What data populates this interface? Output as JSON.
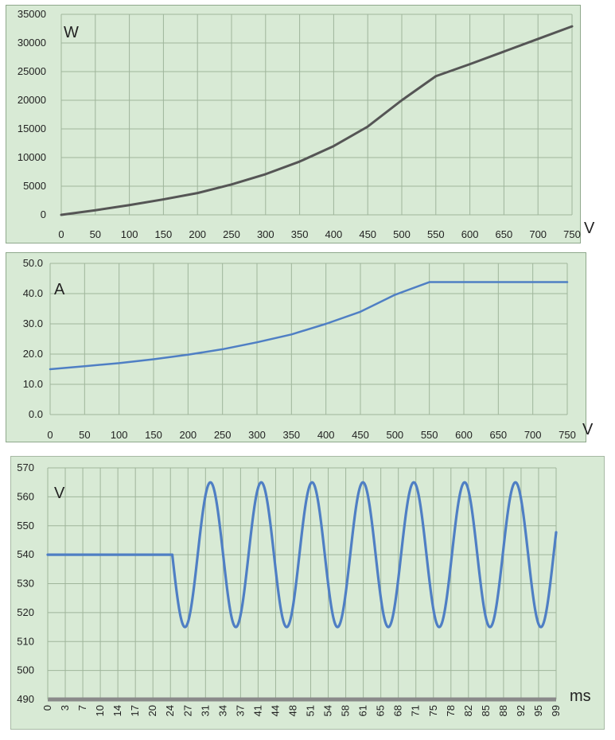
{
  "chart_data": [
    {
      "type": "line",
      "ylabel": "W",
      "xlabel": "V",
      "xlim": [
        0,
        750
      ],
      "ylim": [
        0,
        35000
      ],
      "x_ticks": [
        "0",
        "50",
        "100",
        "150",
        "200",
        "250",
        "300",
        "350",
        "400",
        "450",
        "500",
        "550",
        "600",
        "650",
        "700",
        "750"
      ],
      "y_ticks": [
        "0",
        "5000",
        "10000",
        "15000",
        "20000",
        "25000",
        "30000",
        "35000"
      ],
      "grid": true,
      "series": [
        {
          "color": "#555555",
          "x": [
            0,
            50,
            100,
            150,
            200,
            250,
            300,
            350,
            400,
            450,
            500,
            550,
            600,
            650,
            700,
            750
          ],
          "y": [
            0,
            800,
            1700,
            2700,
            3800,
            5300,
            7100,
            9300,
            12000,
            15400,
            20000,
            24200,
            26300,
            28500,
            30700,
            32900
          ]
        }
      ]
    },
    {
      "type": "line",
      "ylabel": "A",
      "xlabel": "V",
      "xlim": [
        0,
        750
      ],
      "ylim": [
        0,
        50
      ],
      "x_ticks": [
        "0",
        "50",
        "100",
        "150",
        "200",
        "250",
        "300",
        "350",
        "400",
        "450",
        "500",
        "550",
        "600",
        "650",
        "700",
        "750"
      ],
      "y_ticks": [
        "0.0",
        "10.0",
        "20.0",
        "30.0",
        "40.0",
        "50.0"
      ],
      "grid": true,
      "series": [
        {
          "color": "#4f7fc4",
          "x": [
            0,
            50,
            100,
            150,
            200,
            250,
            300,
            350,
            400,
            450,
            500,
            550,
            600,
            650,
            700,
            750
          ],
          "y": [
            15.0,
            16.0,
            17.0,
            18.3,
            19.8,
            21.6,
            23.9,
            26.5,
            30.0,
            34.0,
            39.6,
            43.8,
            43.8,
            43.8,
            43.8,
            43.8
          ]
        }
      ]
    },
    {
      "type": "line",
      "ylabel": "V",
      "xlabel": "ms",
      "xlim": [
        0,
        100
      ],
      "ylim": [
        490,
        570
      ],
      "x_ticks": [
        "0",
        "3",
        "7",
        "10",
        "14",
        "17",
        "20",
        "24",
        "27",
        "31",
        "34",
        "37",
        "41",
        "44",
        "48",
        "51",
        "54",
        "58",
        "61",
        "65",
        "68",
        "71",
        "75",
        "78",
        "82",
        "85",
        "88",
        "92",
        "95",
        "99"
      ],
      "y_ticks": [
        "490",
        "500",
        "510",
        "520",
        "530",
        "540",
        "550",
        "560",
        "570"
      ],
      "grid": true,
      "series": [
        {
          "color": "#4f7fc4",
          "x_start": 0,
          "x_end": 100,
          "baseline_value": 540,
          "baseline_until_ms": 24.5,
          "sine_center": 540,
          "sine_amplitude": 25,
          "sine_period_ms": 10
        }
      ]
    }
  ]
}
